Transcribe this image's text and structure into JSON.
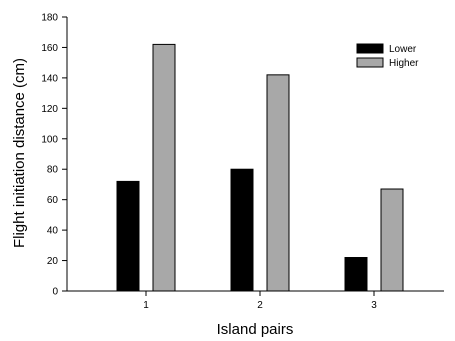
{
  "chart_data": {
    "type": "bar",
    "title": "",
    "xlabel": "Island pairs",
    "ylabel": "Flight initiation distance (cm)",
    "categories": [
      "1",
      "2",
      "3"
    ],
    "series": [
      {
        "name": "Lower",
        "values": [
          72,
          80,
          22
        ],
        "color": "#000000"
      },
      {
        "name": "Higher",
        "values": [
          162,
          142,
          67
        ],
        "color": "#a8a8a8"
      }
    ],
    "ylim": [
      0,
      180
    ],
    "yticks": [
      0,
      20,
      40,
      60,
      80,
      100,
      120,
      140,
      160,
      180
    ],
    "grid": false,
    "legend_position": "top-right"
  }
}
